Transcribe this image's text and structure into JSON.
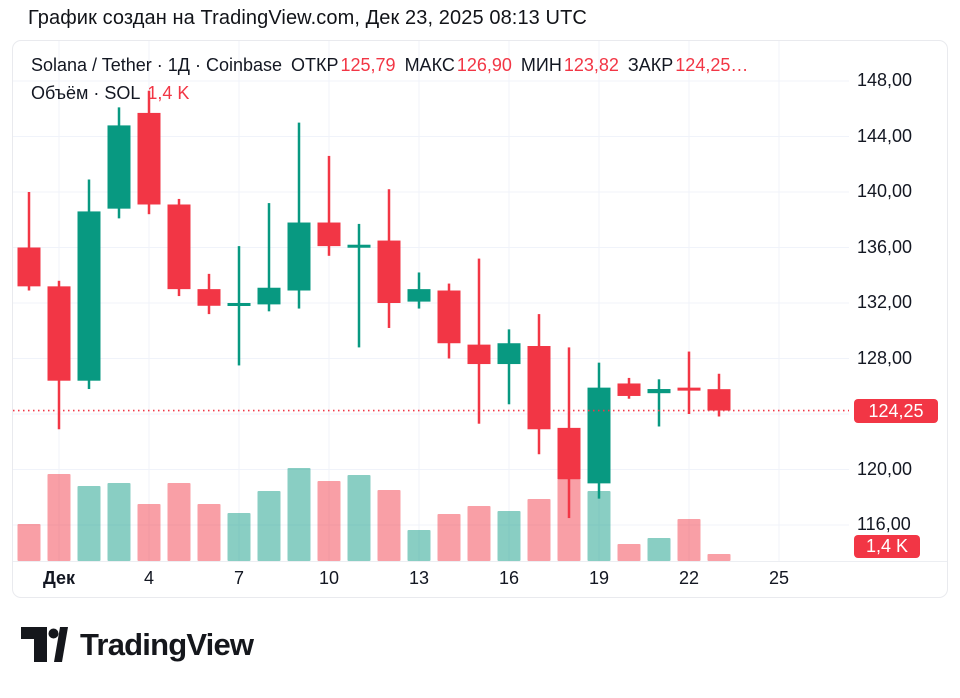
{
  "header": {
    "caption": "График создан на TradingView.com, Дек 23, 2025 08:13 UTC"
  },
  "legend": {
    "symbol": "Solana / Tether · 1Д · Coinbase",
    "ohlc": [
      {
        "label": "ОТКР",
        "value": "125,79"
      },
      {
        "label": "МАКС",
        "value": "126,90"
      },
      {
        "label": "МИН",
        "value": "123,82"
      },
      {
        "label": "ЗАКР",
        "value": "124,25…"
      }
    ],
    "volume_label": "Объём · SOL",
    "volume_value": "1,4 K"
  },
  "price_axis": {
    "labels": [
      {
        "text": "148,00",
        "price": 148
      },
      {
        "text": "144,00",
        "price": 144
      },
      {
        "text": "140,00",
        "price": 140
      },
      {
        "text": "136,00",
        "price": 136
      },
      {
        "text": "132,00",
        "price": 132
      },
      {
        "text": "128,00",
        "price": 128
      },
      {
        "text": "120,00",
        "price": 120
      },
      {
        "text": "116,00",
        "price": 116
      }
    ],
    "grid_prices": [
      148,
      144,
      140,
      136,
      132,
      128,
      124,
      120,
      116
    ],
    "last_price_badge": "124,25",
    "volume_badge": "1,4 K"
  },
  "time_axis": {
    "labels": [
      {
        "text": "Дек",
        "day": 1,
        "bold": true
      },
      {
        "text": "4",
        "day": 4
      },
      {
        "text": "7",
        "day": 7
      },
      {
        "text": "10",
        "day": 10
      },
      {
        "text": "13",
        "day": 13
      },
      {
        "text": "16",
        "day": 16
      },
      {
        "text": "19",
        "day": 19
      },
      {
        "text": "22",
        "day": 22
      },
      {
        "text": "25",
        "day": 25
      }
    ]
  },
  "footer": {
    "brand": "TradingView"
  },
  "colors": {
    "up": "#089981",
    "down": "#f23645",
    "vol_up": "rgba(8,153,129,0.48)",
    "vol_down": "rgba(242,54,69,0.48)",
    "grid": "#f0f3fa",
    "axis_separator": "#eceef2",
    "text": "#131722",
    "badge": "#f23645"
  },
  "chart_data": {
    "type": "candlestick",
    "title": "Solana / Tether",
    "interval": "1D",
    "exchange": "Coinbase",
    "visible_price_range": [
      113.4,
      150.9
    ],
    "last_close": 124.25,
    "last_volume_k": 1.4,
    "volume_unit": "K SOL",
    "candles": [
      {
        "date": "2025-11-30",
        "open": 136.0,
        "high": 140.0,
        "low": 132.9,
        "close": 133.2,
        "volume_k": 7.4
      },
      {
        "date": "2025-12-01",
        "open": 133.2,
        "high": 133.6,
        "low": 122.9,
        "close": 126.4,
        "volume_k": 17.4
      },
      {
        "date": "2025-12-02",
        "open": 126.4,
        "high": 140.9,
        "low": 125.8,
        "close": 138.6,
        "volume_k": 15.0
      },
      {
        "date": "2025-12-03",
        "open": 138.8,
        "high": 146.1,
        "low": 138.1,
        "close": 144.8,
        "volume_k": 15.6
      },
      {
        "date": "2025-12-04",
        "open": 145.7,
        "high": 147.3,
        "low": 138.4,
        "close": 139.1,
        "volume_k": 11.4
      },
      {
        "date": "2025-12-05",
        "open": 139.1,
        "high": 139.5,
        "low": 132.5,
        "close": 133.0,
        "volume_k": 15.6
      },
      {
        "date": "2025-12-06",
        "open": 133.0,
        "high": 134.1,
        "low": 131.2,
        "close": 131.8,
        "volume_k": 11.4
      },
      {
        "date": "2025-12-07",
        "open": 131.8,
        "high": 136.1,
        "low": 127.5,
        "close": 132.0,
        "volume_k": 9.6
      },
      {
        "date": "2025-12-08",
        "open": 131.9,
        "high": 139.2,
        "low": 131.4,
        "close": 133.1,
        "volume_k": 14.0
      },
      {
        "date": "2025-12-09",
        "open": 132.9,
        "high": 145.0,
        "low": 131.6,
        "close": 137.8,
        "volume_k": 18.6
      },
      {
        "date": "2025-12-10",
        "open": 137.8,
        "high": 142.6,
        "low": 135.4,
        "close": 136.1,
        "volume_k": 16.0
      },
      {
        "date": "2025-12-11",
        "open": 136.1,
        "high": 137.7,
        "low": 128.8,
        "close": 136.2,
        "volume_k": 17.2
      },
      {
        "date": "2025-12-12",
        "open": 136.5,
        "high": 140.2,
        "low": 130.2,
        "close": 132.0,
        "volume_k": 14.2
      },
      {
        "date": "2025-12-13",
        "open": 132.1,
        "high": 134.2,
        "low": 131.6,
        "close": 133.0,
        "volume_k": 6.2
      },
      {
        "date": "2025-12-14",
        "open": 132.9,
        "high": 133.4,
        "low": 128.0,
        "close": 129.1,
        "volume_k": 9.4
      },
      {
        "date": "2025-12-15",
        "open": 129.0,
        "high": 135.2,
        "low": 123.3,
        "close": 127.6,
        "volume_k": 11.0
      },
      {
        "date": "2025-12-16",
        "open": 127.6,
        "high": 130.1,
        "low": 124.7,
        "close": 129.1,
        "volume_k": 10.0
      },
      {
        "date": "2025-12-17",
        "open": 128.9,
        "high": 131.2,
        "low": 121.1,
        "close": 122.9,
        "volume_k": 12.4
      },
      {
        "date": "2025-12-18",
        "open": 123.0,
        "high": 128.8,
        "low": 116.5,
        "close": 119.3,
        "volume_k": 16.4
      },
      {
        "date": "2025-12-19",
        "open": 119.0,
        "high": 127.7,
        "low": 117.9,
        "close": 125.9,
        "volume_k": 14.0
      },
      {
        "date": "2025-12-20",
        "open": 126.2,
        "high": 126.6,
        "low": 125.1,
        "close": 125.3,
        "volume_k": 3.4
      },
      {
        "date": "2025-12-21",
        "open": 125.5,
        "high": 126.5,
        "low": 123.1,
        "close": 125.8,
        "volume_k": 4.6
      },
      {
        "date": "2025-12-22",
        "open": 125.9,
        "high": 128.5,
        "low": 124.0,
        "close": 125.8,
        "volume_k": 8.4
      },
      {
        "date": "2025-12-23",
        "open": 125.79,
        "high": 126.9,
        "low": 123.82,
        "close": 124.25,
        "volume_k": 1.4
      }
    ]
  }
}
